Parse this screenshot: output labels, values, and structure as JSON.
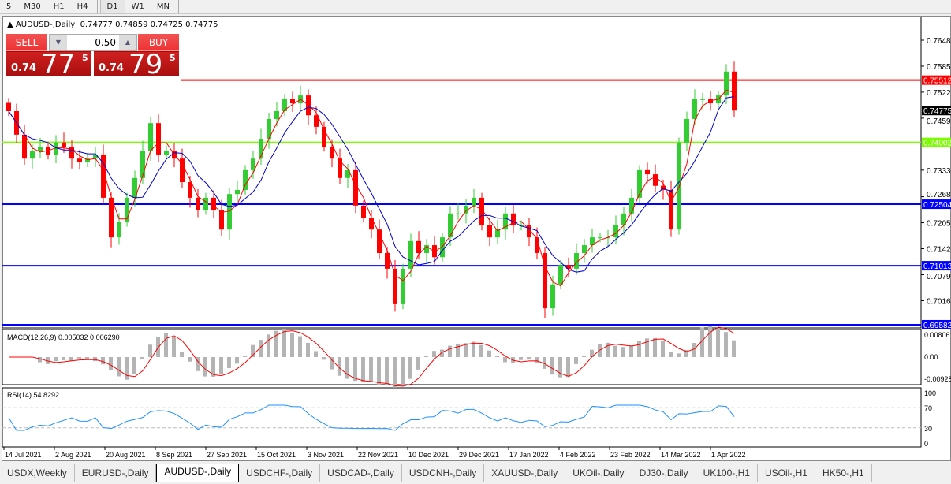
{
  "timeframes": [
    "5",
    "M30",
    "H1",
    "H4",
    "D1",
    "W1",
    "MN"
  ],
  "active_timeframe": "D1",
  "chart": {
    "title": "AUDUSD-,Daily",
    "ohlc": "0.74777 0.74859 0.74725 0.74775"
  },
  "trade_panel": {
    "sell_label": "SELL",
    "buy_label": "BUY",
    "lot": "0.50",
    "sell_small": "0.74",
    "sell_big": "77",
    "sell_sup": "5",
    "buy_small": "0.74",
    "buy_big": "79",
    "buy_sup": "5"
  },
  "price_axis": [
    "0.76480",
    "0.75850",
    "0.75220",
    "0.74590",
    "0.73330",
    "0.72685",
    "0.72055",
    "0.71425",
    "0.70795",
    "0.70165"
  ],
  "levels": [
    {
      "price": 0.75512,
      "label": "0.75512",
      "color": "#ff0000"
    },
    {
      "price": 0.74002,
      "label": "0.74002",
      "color": "#7cfc00"
    },
    {
      "price": 0.72504,
      "label": "0.72504",
      "color": "#0000ff"
    },
    {
      "price": 0.71013,
      "label": "0.71013",
      "color": "#0000ff"
    },
    {
      "price": 0.69582,
      "label": "0.69582",
      "color": "#0000ff"
    }
  ],
  "current_price": "0.74775",
  "macd": {
    "label": "MACD(12,26,9) 0.005032 0.006290",
    "axis": [
      "0.008061",
      "0.00",
      "-0.00928"
    ]
  },
  "rsi": {
    "label": "RSI(14) 54.8292",
    "axis": [
      "100",
      "70",
      "30",
      "0"
    ]
  },
  "dates": [
    "14 Jul 2021",
    "2 Aug 2021",
    "20 Aug 2021",
    "8 Sep 2021",
    "27 Sep 2021",
    "15 Oct 2021",
    "3 Nov 2021",
    "22 Nov 2021",
    "10 Dec 2021",
    "29 Dec 2021",
    "17 Jan 2022",
    "4 Feb 2022",
    "23 Feb 2022",
    "14 Mar 2022",
    "1 Apr 2022"
  ],
  "colors": {
    "bull": "#32cd32",
    "bear": "#ff0000",
    "ma_fast": "#ff0000",
    "ma_slow": "#0000cd"
  },
  "chart_data": {
    "type": "candlestick",
    "closes": [
      0.7476,
      0.7419,
      0.7361,
      0.738,
      0.739,
      0.7371,
      0.74,
      0.739,
      0.7361,
      0.7352,
      0.7361,
      0.7371,
      0.7266,
      0.717,
      0.7208,
      0.7266,
      0.7314,
      0.738,
      0.7447,
      0.7371,
      0.738,
      0.7361,
      0.7304,
      0.7266,
      0.7237,
      0.7266,
      0.7237,
      0.7189,
      0.7275,
      0.7285,
      0.7333,
      0.7361,
      0.7409,
      0.7457,
      0.7476,
      0.7505,
      0.7495,
      0.7514,
      0.7466,
      0.7438,
      0.739,
      0.7361,
      0.7314,
      0.7333,
      0.7247,
      0.7218,
      0.7189,
      0.7132,
      0.7094,
      0.7008,
      0.7094,
      0.7161,
      0.7132,
      0.7151,
      0.7122,
      0.717,
      0.7228,
      0.7228,
      0.7247,
      0.7266,
      0.7199,
      0.717,
      0.7189,
      0.7228,
      0.7199,
      0.7199,
      0.717,
      0.7132,
      0.6998,
      0.7056,
      0.7103,
      0.7094,
      0.7132,
      0.7151,
      0.717,
      0.717,
      0.717,
      0.7199,
      0.7228,
      0.7266,
      0.7333,
      0.7323,
      0.7295,
      0.7285,
      0.7189,
      0.74,
      0.7457,
      0.7505,
      0.7505,
      0.7495,
      0.7514,
      0.7572,
      0.74775
    ],
    "ylim": [
      0.695,
      0.767
    ]
  }
}
